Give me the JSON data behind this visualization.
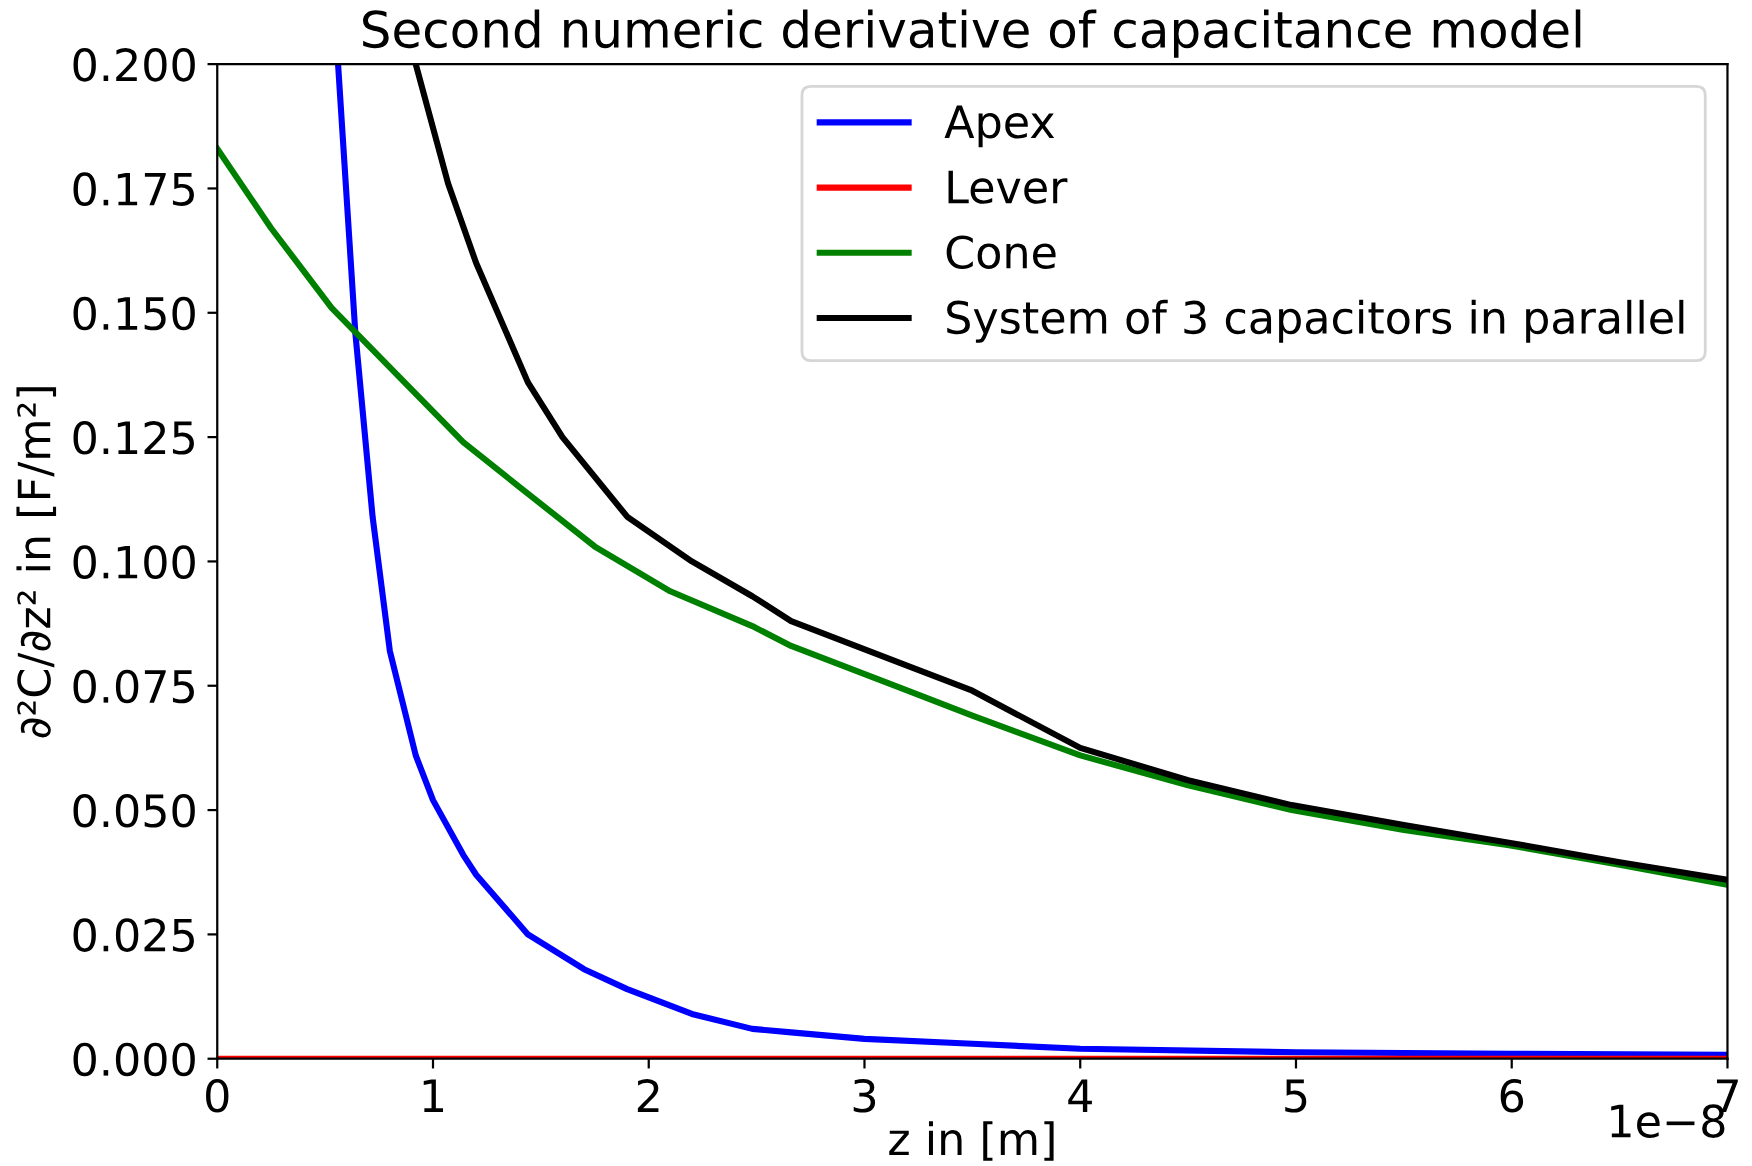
{
  "chart_data": {
    "type": "line",
    "title": "Second numeric derivative of capacitance model",
    "xlabel": "z in [m]",
    "ylabel": "∂²C/∂z² in [F/m²]",
    "annotations": [
      "1e−8"
    ],
    "xlim": [
      0,
      7
    ],
    "xticks": [
      0,
      1,
      2,
      3,
      4,
      5,
      6,
      7
    ],
    "ylim": [
      0,
      0.2
    ],
    "yticks": [
      {
        "value": 0,
        "label": "0.000"
      },
      {
        "value": 0.025,
        "label": "0.025"
      },
      {
        "value": 0.05,
        "label": "0.050"
      },
      {
        "value": 0.075,
        "label": "0.075"
      },
      {
        "value": 0.1,
        "label": "0.100"
      },
      {
        "value": 0.125,
        "label": "0.125"
      },
      {
        "value": 0.15,
        "label": "0.150"
      },
      {
        "value": 0.175,
        "label": "0.175"
      },
      {
        "value": 0.2,
        "label": "0.200"
      }
    ],
    "legend": "top right",
    "grid": false,
    "marker": "none",
    "line_style": "solid",
    "series": [
      {
        "name": "Apex",
        "color": "#0000ff",
        "x": [
          0.56,
          0.64,
          0.72,
          0.8,
          0.92,
          1.0,
          1.14,
          1.2,
          1.44,
          1.7,
          1.9,
          2.2,
          2.48,
          2.66,
          3.0,
          3.5,
          4.0,
          5.0,
          6.0,
          7.0
        ],
        "values": [
          0.2,
          0.146,
          0.109,
          0.082,
          0.061,
          0.052,
          0.041,
          0.037,
          0.025,
          0.018,
          0.014,
          0.009,
          0.006,
          0.0053,
          0.004,
          0.003,
          0.002,
          0.0013,
          0.001,
          0.0008
        ]
      },
      {
        "name": "Lever",
        "color": "#ff0000",
        "x": [
          0,
          7
        ],
        "values": [
          0,
          0
        ]
      },
      {
        "name": "Cone",
        "color": "#008000",
        "x": [
          0,
          0.25,
          0.53,
          0.8,
          1.14,
          1.4,
          1.75,
          2.1,
          2.48,
          2.66,
          3.2,
          3.5,
          4.0,
          4.5,
          4.98,
          5.5,
          5.98,
          6.5,
          7.0
        ],
        "values": [
          0.183,
          0.167,
          0.151,
          0.139,
          0.124,
          0.115,
          0.103,
          0.094,
          0.087,
          0.083,
          0.074,
          0.069,
          0.061,
          0.055,
          0.05,
          0.046,
          0.043,
          0.039,
          0.035
        ]
      },
      {
        "name": "System of 3 capacitors in parallel",
        "color": "#000000",
        "x": [
          0.92,
          1.07,
          1.2,
          1.44,
          1.6,
          1.9,
          2.2,
          2.48,
          2.66,
          3.2,
          3.5,
          4.0,
          4.5,
          4.98,
          5.5,
          5.98,
          6.5,
          7.0
        ],
        "values": [
          0.2,
          0.176,
          0.16,
          0.136,
          0.125,
          0.109,
          0.1,
          0.093,
          0.088,
          0.079,
          0.074,
          0.0625,
          0.056,
          0.051,
          0.047,
          0.0435,
          0.0395,
          0.036
        ]
      }
    ]
  }
}
